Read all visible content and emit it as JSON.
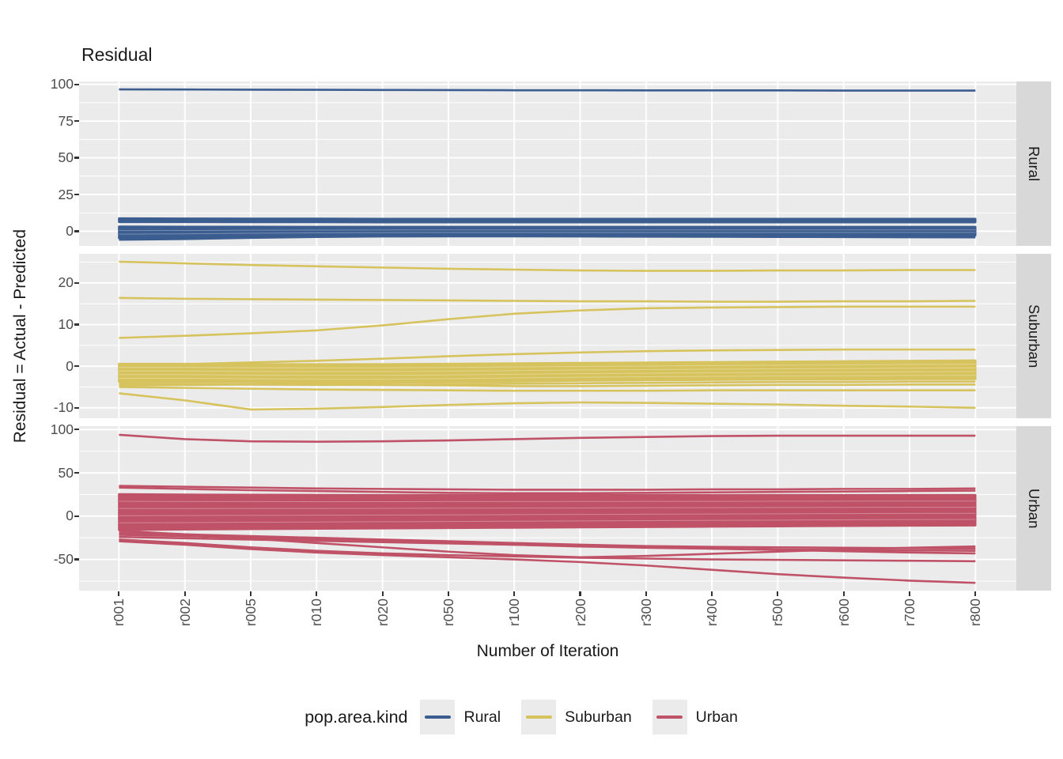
{
  "style": {
    "panel_bg": "#EBEBEB",
    "strip_bg": "#D8D8D8",
    "grid_color": "#FFFFFF",
    "tick_text_color": "#4D4D4D",
    "axis_text_color": "#1A1A1A",
    "tick_mark_color": "#333333",
    "legend_key_bg": "#EBEBEB"
  },
  "chart_data": {
    "type": "line",
    "title": "Residual",
    "xlabel": "Number of Iteration",
    "ylabel": "Residual = Actual - Predicted",
    "categories": [
      "r001",
      "r002",
      "r005",
      "r010",
      "r020",
      "r050",
      "r100",
      "r200",
      "r300",
      "r400",
      "r500",
      "r600",
      "r700",
      "r800"
    ],
    "legend": {
      "title": "pop.area.kind",
      "entries": [
        {
          "label": "Rural",
          "color": "#3B5D8F"
        },
        {
          "label": "Suburban",
          "color": "#D6C35E"
        },
        {
          "label": "Urban",
          "color": "#C05268"
        }
      ]
    },
    "facets": [
      {
        "label": "Rural",
        "color": "#3B5D8F",
        "ylim": [
          -10,
          102
        ],
        "yticks": [
          100,
          75,
          50,
          25,
          0
        ],
        "yminor": [
          87.5,
          62.5,
          37.5,
          12.5
        ],
        "series": [
          {
            "name": "rural-96",
            "values": [
              96.6,
              96.5,
              96.4,
              96.3,
              96.2,
              96.1,
              96.0,
              96.0,
              95.9,
              95.9,
              95.9,
              95.8,
              95.8,
              95.8
            ]
          },
          {
            "name": "rural-low",
            "values": [
              -5.8,
              -5.3,
              -4.5,
              -3.9,
              -3.6,
              -3.5,
              -3.5,
              -3.6,
              -3.7,
              -3.8,
              -3.9,
              -4.0,
              -4.1,
              -4.2
            ]
          }
        ],
        "bands": [
          {
            "name": "rural-band-8",
            "top": [
              8.8,
              8.7,
              8.6,
              8.6,
              8.5,
              8.5,
              8.5,
              8.5,
              8.5,
              8.5,
              8.5,
              8.5,
              8.5,
              8.5
            ],
            "bottom": [
              6.2,
              6.2,
              6.1,
              6.1,
              6.0,
              6.0,
              6.0,
              6.0,
              6.0,
              6.0,
              6.0,
              6.0,
              6.0,
              6.0
            ]
          },
          {
            "name": "rural-band-0",
            "top": [
              3.2,
              3.1,
              3.1,
              3.0,
              3.0,
              3.0,
              3.0,
              3.0,
              3.0,
              3.0,
              3.0,
              3.0,
              3.0,
              3.0
            ],
            "bottom": [
              -4.8,
              -4.4,
              -3.8,
              -3.3,
              -3.1,
              -3.0,
              -3.0,
              -3.0,
              -3.0,
              -3.0,
              -3.0,
              -3.0,
              -2.9,
              -2.9
            ]
          }
        ]
      },
      {
        "label": "Suburban",
        "color": "#D6C35E",
        "ylim": [
          -12.5,
          27
        ],
        "yticks": [
          20,
          10,
          0,
          -10
        ],
        "yminor": [
          25,
          15,
          5,
          -5
        ],
        "series": [
          {
            "name": "sub-25",
            "values": [
              25.1,
              24.7,
              24.3,
              24.0,
              23.7,
              23.4,
              23.2,
              23.0,
              22.9,
              22.9,
              23.0,
              23.0,
              23.1,
              23.1
            ]
          },
          {
            "name": "sub-16",
            "values": [
              16.4,
              16.2,
              16.1,
              16.0,
              15.9,
              15.8,
              15.7,
              15.6,
              15.6,
              15.5,
              15.5,
              15.6,
              15.6,
              15.7
            ]
          },
          {
            "name": "sub-rise",
            "values": [
              6.8,
              7.3,
              7.9,
              8.6,
              9.8,
              11.3,
              12.6,
              13.4,
              13.9,
              14.1,
              14.2,
              14.3,
              14.3,
              14.3
            ]
          },
          {
            "name": "sub-4",
            "values": [
              0.3,
              0.5,
              0.9,
              1.3,
              1.8,
              2.4,
              2.9,
              3.3,
              3.6,
              3.8,
              3.9,
              4.0,
              4.0,
              4.0
            ]
          },
          {
            "name": "sub-low1",
            "values": [
              -4.2,
              -4.3,
              -4.4,
              -4.5,
              -4.5,
              -4.4,
              -4.2,
              -4.1,
              -4.0,
              -3.9,
              -3.8,
              -3.8,
              -3.7,
              -3.7
            ]
          },
          {
            "name": "sub-low2",
            "values": [
              -4.6,
              -4.5,
              -4.4,
              -4.4,
              -4.5,
              -4.6,
              -4.8,
              -4.8,
              -4.7,
              -4.6,
              -4.5,
              -4.5,
              -4.4,
              -4.4
            ]
          },
          {
            "name": "sub-low3",
            "values": [
              -5.0,
              -5.2,
              -5.4,
              -5.6,
              -5.7,
              -5.8,
              -5.9,
              -5.9,
              -5.9,
              -5.8,
              -5.8,
              -5.8,
              -5.8,
              -5.8
            ]
          },
          {
            "name": "sub-dip",
            "values": [
              -6.5,
              -8.2,
              -10.4,
              -10.2,
              -9.8,
              -9.3,
              -8.9,
              -8.7,
              -8.8,
              -9.0,
              -9.2,
              -9.5,
              -9.7,
              -10.0
            ]
          }
        ],
        "bands": [
          {
            "name": "sub-band-0",
            "top": [
              0.6,
              0.6,
              0.5,
              0.5,
              0.5,
              0.6,
              0.7,
              0.8,
              0.9,
              1.0,
              1.1,
              1.2,
              1.3,
              1.4
            ],
            "bottom": [
              -3.8,
              -3.8,
              -3.9,
              -4.0,
              -4.0,
              -3.9,
              -3.7,
              -3.5,
              -3.4,
              -3.3,
              -3.2,
              -3.2,
              -3.1,
              -3.1
            ]
          }
        ]
      },
      {
        "label": "Urban",
        "color": "#C05268",
        "ylim": [
          -86,
          104
        ],
        "yticks": [
          100,
          50,
          0,
          -50
        ],
        "yminor": [
          75,
          25,
          -25,
          -75
        ],
        "series": [
          {
            "name": "urb-top",
            "values": [
              94,
              89,
              86.5,
              86,
              86.5,
              87.5,
              89,
              90.5,
              91.5,
              92.5,
              93,
              93,
              93,
              93
            ]
          },
          {
            "name": "urb-35",
            "values": [
              35,
              34,
              33,
              32,
              31.5,
              31,
              30.5,
              30.5,
              30.5,
              31,
              31,
              31.5,
              31.5,
              32
            ]
          },
          {
            "name": "urb-33",
            "values": [
              33,
              31.5,
              30,
              29,
              28,
              27,
              26.5,
              26.5,
              27,
              27.5,
              28,
              28.5,
              29,
              29.5
            ]
          },
          {
            "name": "urb-L1",
            "values": [
              -19.5,
              -21,
              -23,
              -25,
              -27,
              -29,
              -31,
              -33,
              -34.5,
              -35.5,
              -36,
              -36.5,
              -37,
              -37.5
            ]
          },
          {
            "name": "urb-L2",
            "values": [
              -21.5,
              -23,
              -25,
              -27,
              -29,
              -31,
              -33,
              -35,
              -36.5,
              -37.5,
              -38.5,
              -39,
              -39.5,
              -40
            ]
          },
          {
            "name": "urb-V",
            "values": [
              -17,
              -21,
              -26,
              -31,
              -36,
              -41,
              -45,
              -47.5,
              -46,
              -43.5,
              -41,
              -38.5,
              -36.5,
              -35
            ]
          },
          {
            "name": "urb-X",
            "values": [
              -24,
              -25.5,
              -27,
              -28.5,
              -30,
              -31.5,
              -33,
              -34.5,
              -36,
              -37.5,
              -39,
              -40.5,
              -42,
              -43
            ]
          },
          {
            "name": "urb-P1",
            "values": [
              -27,
              -31,
              -36,
              -40,
              -43,
              -45,
              -46.5,
              -48,
              -49,
              -50,
              -50.5,
              -51,
              -51.5,
              -52
            ]
          },
          {
            "name": "urb-P2",
            "values": [
              -29,
              -33,
              -38,
              -42,
              -45,
              -47.5,
              -50,
              -53,
              -57,
              -62,
              -67,
              -71,
              -74.5,
              -77
            ]
          }
        ],
        "bands": [
          {
            "name": "urb-band-0",
            "top": [
              25.5,
              25,
              24.8,
              24.6,
              24.5,
              24.5,
              24.5,
              24.5,
              24.5,
              24.5,
              24.5,
              24.5,
              24.5,
              24.5
            ],
            "bottom": [
              -16,
              -15.5,
              -15,
              -14.6,
              -14.2,
              -13.8,
              -13.4,
              -13,
              -12.6,
              -12.2,
              -11.8,
              -11.4,
              -11,
              -10.8
            ]
          }
        ]
      }
    ]
  }
}
